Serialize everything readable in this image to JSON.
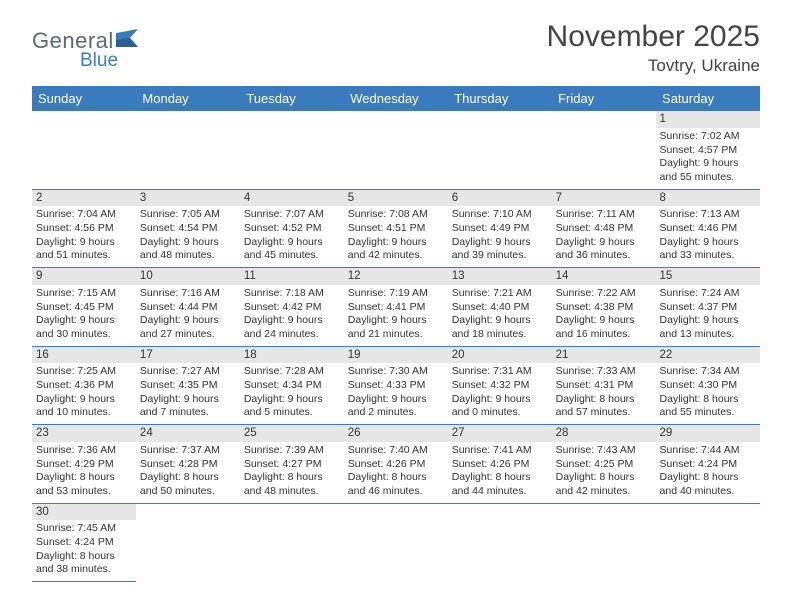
{
  "logo": {
    "text1": "General",
    "text2": "Blue"
  },
  "title": "November 2025",
  "location": "Tovtry, Ukraine",
  "colors": {
    "header_bg": "#3a7bbf",
    "header_text": "#ffffff",
    "daynum_bg": "#e6e6e6",
    "border": "#3a7bbf",
    "body_text": "#333333",
    "logo_general": "#5a6a76",
    "logo_blue": "#3a7bbf"
  },
  "weekdays": [
    "Sunday",
    "Monday",
    "Tuesday",
    "Wednesday",
    "Thursday",
    "Friday",
    "Saturday"
  ],
  "weeks": [
    [
      null,
      null,
      null,
      null,
      null,
      null,
      {
        "n": "1",
        "sr": "7:02 AM",
        "ss": "4:57 PM",
        "dl": "9 hours and 55 minutes."
      }
    ],
    [
      {
        "n": "2",
        "sr": "7:04 AM",
        "ss": "4:56 PM",
        "dl": "9 hours and 51 minutes."
      },
      {
        "n": "3",
        "sr": "7:05 AM",
        "ss": "4:54 PM",
        "dl": "9 hours and 48 minutes."
      },
      {
        "n": "4",
        "sr": "7:07 AM",
        "ss": "4:52 PM",
        "dl": "9 hours and 45 minutes."
      },
      {
        "n": "5",
        "sr": "7:08 AM",
        "ss": "4:51 PM",
        "dl": "9 hours and 42 minutes."
      },
      {
        "n": "6",
        "sr": "7:10 AM",
        "ss": "4:49 PM",
        "dl": "9 hours and 39 minutes."
      },
      {
        "n": "7",
        "sr": "7:11 AM",
        "ss": "4:48 PM",
        "dl": "9 hours and 36 minutes."
      },
      {
        "n": "8",
        "sr": "7:13 AM",
        "ss": "4:46 PM",
        "dl": "9 hours and 33 minutes."
      }
    ],
    [
      {
        "n": "9",
        "sr": "7:15 AM",
        "ss": "4:45 PM",
        "dl": "9 hours and 30 minutes."
      },
      {
        "n": "10",
        "sr": "7:16 AM",
        "ss": "4:44 PM",
        "dl": "9 hours and 27 minutes."
      },
      {
        "n": "11",
        "sr": "7:18 AM",
        "ss": "4:42 PM",
        "dl": "9 hours and 24 minutes."
      },
      {
        "n": "12",
        "sr": "7:19 AM",
        "ss": "4:41 PM",
        "dl": "9 hours and 21 minutes."
      },
      {
        "n": "13",
        "sr": "7:21 AM",
        "ss": "4:40 PM",
        "dl": "9 hours and 18 minutes."
      },
      {
        "n": "14",
        "sr": "7:22 AM",
        "ss": "4:38 PM",
        "dl": "9 hours and 16 minutes."
      },
      {
        "n": "15",
        "sr": "7:24 AM",
        "ss": "4:37 PM",
        "dl": "9 hours and 13 minutes."
      }
    ],
    [
      {
        "n": "16",
        "sr": "7:25 AM",
        "ss": "4:36 PM",
        "dl": "9 hours and 10 minutes."
      },
      {
        "n": "17",
        "sr": "7:27 AM",
        "ss": "4:35 PM",
        "dl": "9 hours and 7 minutes."
      },
      {
        "n": "18",
        "sr": "7:28 AM",
        "ss": "4:34 PM",
        "dl": "9 hours and 5 minutes."
      },
      {
        "n": "19",
        "sr": "7:30 AM",
        "ss": "4:33 PM",
        "dl": "9 hours and 2 minutes."
      },
      {
        "n": "20",
        "sr": "7:31 AM",
        "ss": "4:32 PM",
        "dl": "9 hours and 0 minutes."
      },
      {
        "n": "21",
        "sr": "7:33 AM",
        "ss": "4:31 PM",
        "dl": "8 hours and 57 minutes."
      },
      {
        "n": "22",
        "sr": "7:34 AM",
        "ss": "4:30 PM",
        "dl": "8 hours and 55 minutes."
      }
    ],
    [
      {
        "n": "23",
        "sr": "7:36 AM",
        "ss": "4:29 PM",
        "dl": "8 hours and 53 minutes."
      },
      {
        "n": "24",
        "sr": "7:37 AM",
        "ss": "4:28 PM",
        "dl": "8 hours and 50 minutes."
      },
      {
        "n": "25",
        "sr": "7:39 AM",
        "ss": "4:27 PM",
        "dl": "8 hours and 48 minutes."
      },
      {
        "n": "26",
        "sr": "7:40 AM",
        "ss": "4:26 PM",
        "dl": "8 hours and 46 minutes."
      },
      {
        "n": "27",
        "sr": "7:41 AM",
        "ss": "4:26 PM",
        "dl": "8 hours and 44 minutes."
      },
      {
        "n": "28",
        "sr": "7:43 AM",
        "ss": "4:25 PM",
        "dl": "8 hours and 42 minutes."
      },
      {
        "n": "29",
        "sr": "7:44 AM",
        "ss": "4:24 PM",
        "dl": "8 hours and 40 minutes."
      }
    ],
    [
      {
        "n": "30",
        "sr": "7:45 AM",
        "ss": "4:24 PM",
        "dl": "8 hours and 38 minutes."
      },
      null,
      null,
      null,
      null,
      null,
      null
    ]
  ],
  "labels": {
    "sunrise": "Sunrise: ",
    "sunset": "Sunset: ",
    "daylight": "Daylight: "
  }
}
